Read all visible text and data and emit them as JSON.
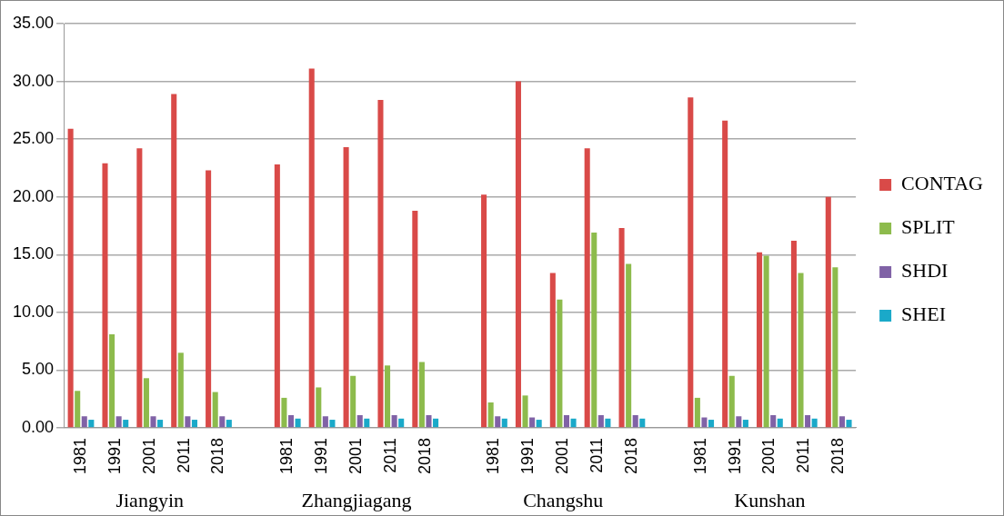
{
  "chart_data": {
    "type": "bar",
    "categories": [
      "1981",
      "1991",
      "2001",
      "2011",
      "2018",
      null,
      "1981",
      "1991",
      "2001",
      "2011",
      "2018",
      null,
      "1981",
      "1991",
      "2001",
      "2011",
      "2018",
      null,
      "1981",
      "1991",
      "2001",
      "2011",
      "2018"
    ],
    "series": [
      {
        "name": "CONTAG",
        "color": "#d94a48",
        "values": [
          25.9,
          22.9,
          24.2,
          28.9,
          22.3,
          null,
          22.8,
          31.1,
          24.3,
          28.4,
          18.8,
          null,
          20.2,
          30.0,
          13.4,
          24.2,
          17.3,
          null,
          28.6,
          26.6,
          15.2,
          16.2,
          20.0
        ]
      },
      {
        "name": "SPLIT",
        "color": "#8dbb4c",
        "values": [
          3.2,
          8.1,
          4.3,
          6.5,
          3.1,
          null,
          2.6,
          3.5,
          4.5,
          5.4,
          5.7,
          null,
          2.2,
          2.8,
          11.1,
          16.9,
          14.2,
          null,
          2.6,
          4.5,
          14.9,
          13.4,
          13.9
        ]
      },
      {
        "name": "SHDI",
        "color": "#8062a6",
        "values": [
          1.0,
          1.0,
          1.0,
          1.0,
          1.0,
          null,
          1.1,
          1.0,
          1.1,
          1.1,
          1.1,
          null,
          1.0,
          0.9,
          1.1,
          1.1,
          1.1,
          null,
          0.9,
          1.0,
          1.1,
          1.1,
          1.0
        ]
      },
      {
        "name": "SHEI",
        "color": "#1aa9c9",
        "values": [
          0.7,
          0.7,
          0.7,
          0.7,
          0.7,
          null,
          0.8,
          0.7,
          0.8,
          0.8,
          0.8,
          null,
          0.8,
          0.7,
          0.8,
          0.8,
          0.8,
          null,
          0.7,
          0.7,
          0.8,
          0.8,
          0.7
        ]
      }
    ],
    "ylim": [
      0,
      35
    ],
    "yticks": [
      {
        "value": 0,
        "label": "0.00"
      },
      {
        "value": 5,
        "label": "5.00"
      },
      {
        "value": 10,
        "label": "10.00"
      },
      {
        "value": 15,
        "label": "15.00"
      },
      {
        "value": 20,
        "label": "20.00"
      },
      {
        "value": 25,
        "label": "25.00"
      },
      {
        "value": 30,
        "label": "30.00"
      },
      {
        "value": 35,
        "label": "35.00"
      }
    ],
    "grid": "y",
    "legend": "right",
    "annotations": [
      "Jiangyin",
      "Zhangjiagang",
      "Changshu",
      "Kunshan"
    ]
  }
}
